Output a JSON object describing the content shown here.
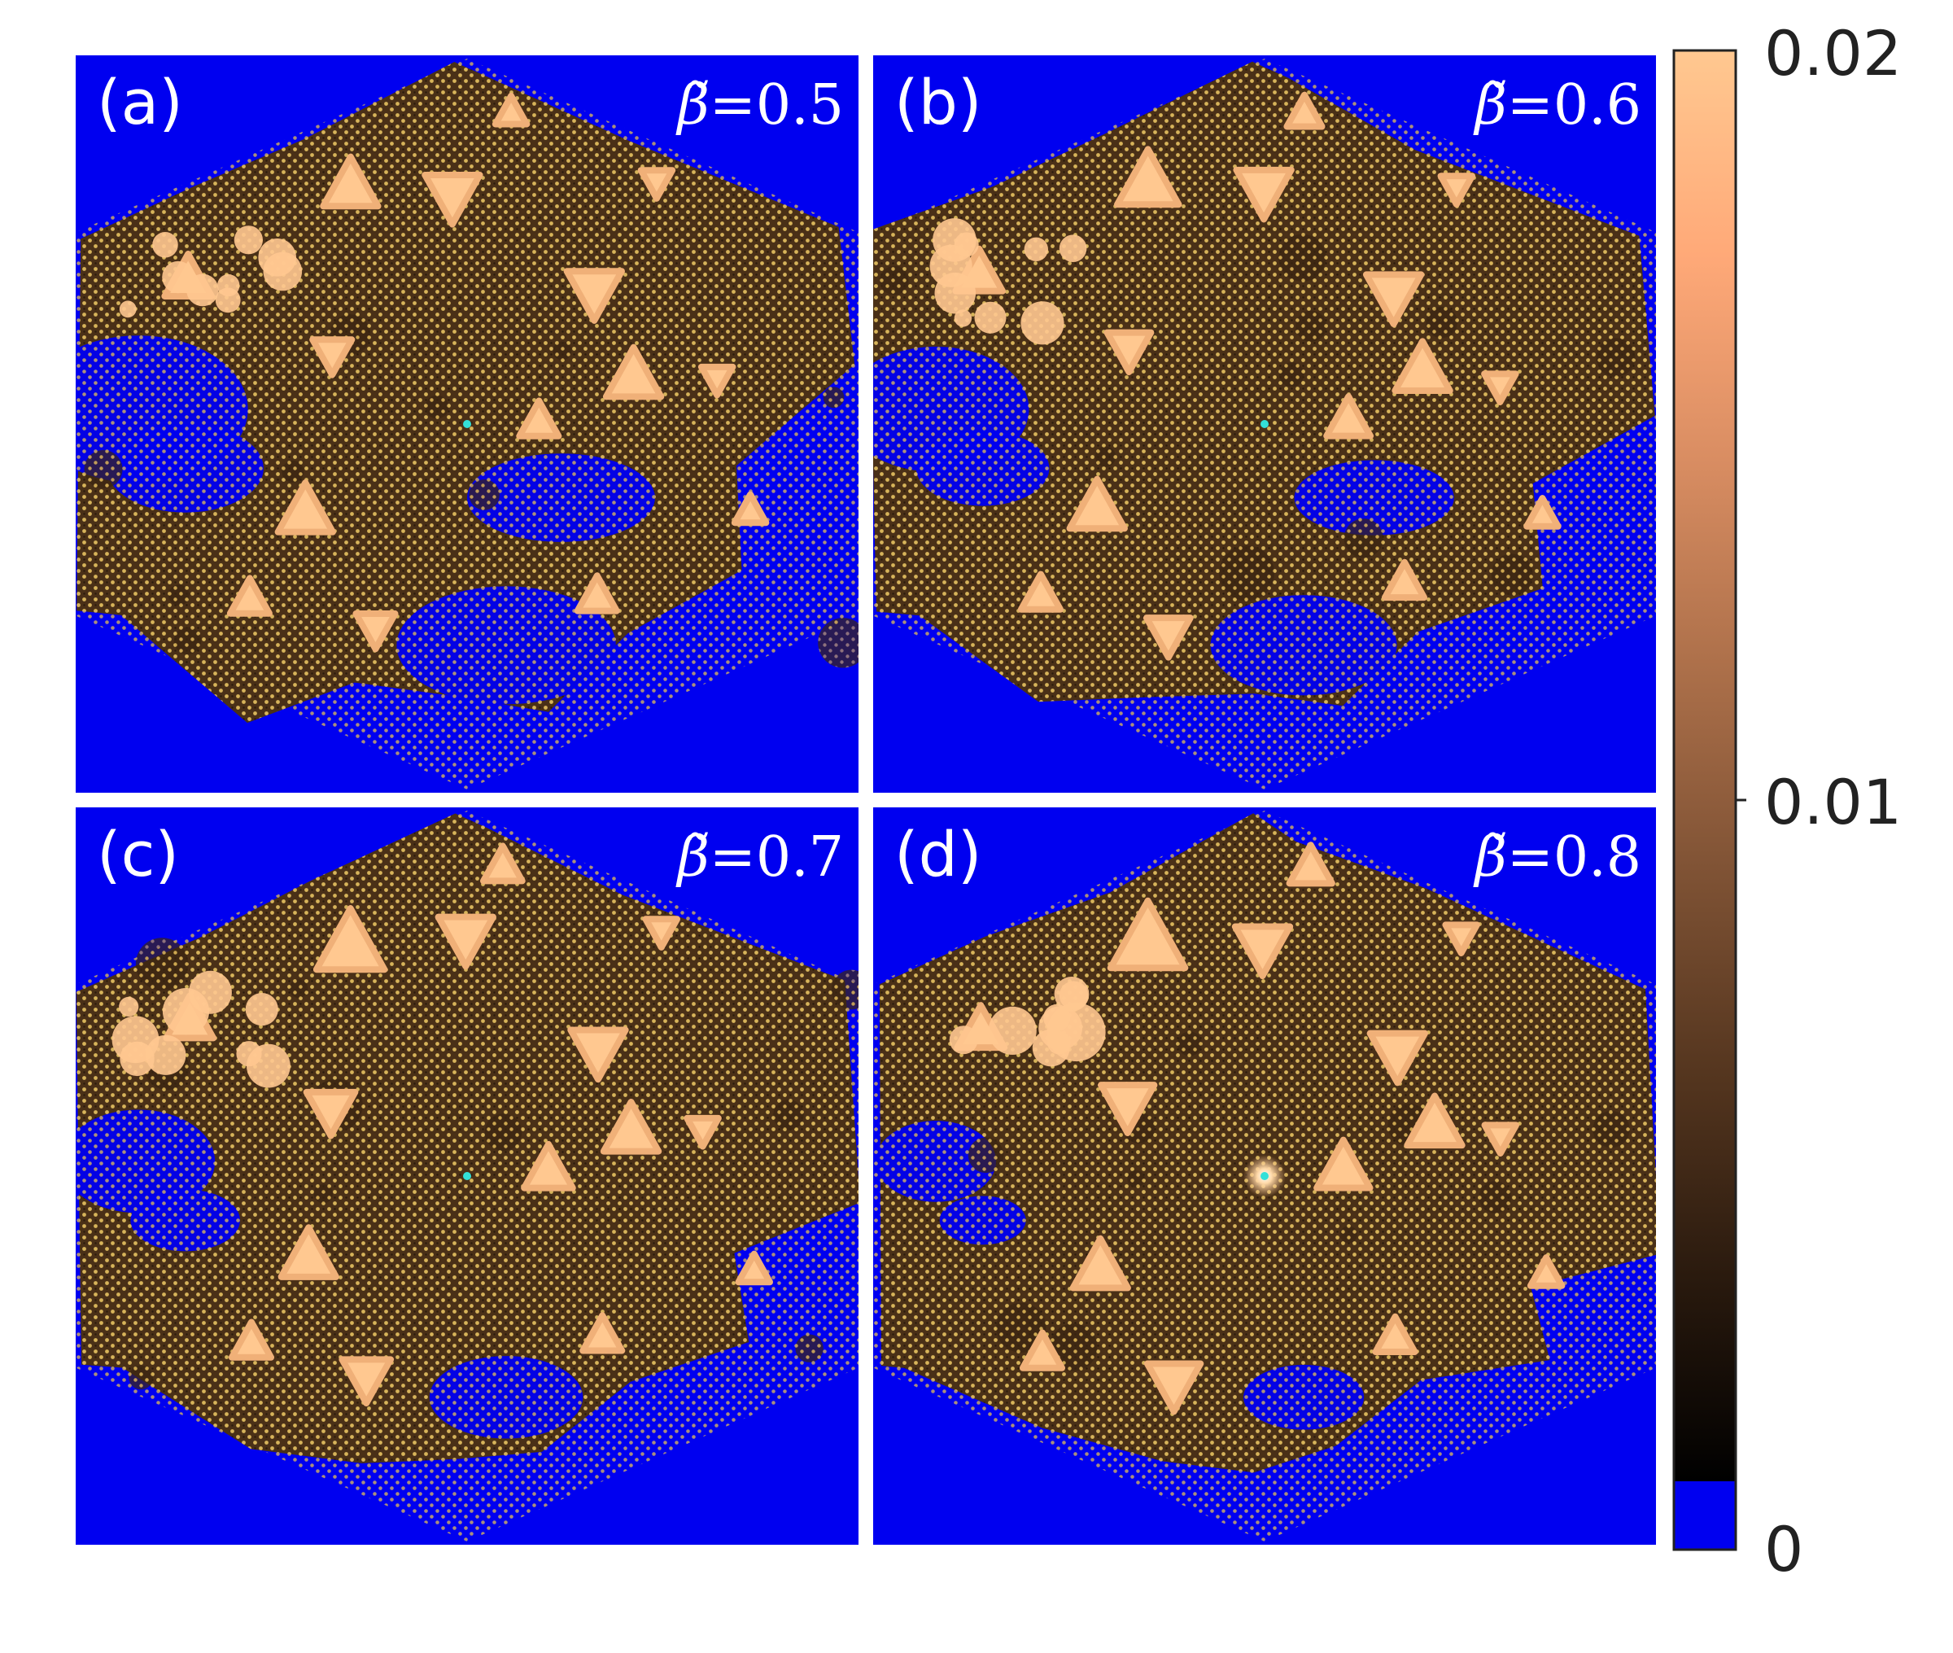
{
  "figure": {
    "panels": [
      {
        "label": "(a)",
        "beta_symbol": "β̃",
        "beta_equals": "=",
        "beta_value": "0.5",
        "cyan_spot": "small"
      },
      {
        "label": "(b)",
        "beta_symbol": "β̃",
        "beta_equals": "=",
        "beta_value": "0.6",
        "cyan_spot": "small"
      },
      {
        "label": "(c)",
        "beta_symbol": "β̃",
        "beta_equals": "=",
        "beta_value": "0.7",
        "cyan_spot": "small"
      },
      {
        "label": "(d)",
        "beta_symbol": "β̃",
        "beta_equals": "=",
        "beta_value": "0.8",
        "cyan_spot": "glow"
      }
    ],
    "colors": {
      "background_zero": "#0000f0",
      "lattice_site": "#d7b45a",
      "cyan_spot": "#33e0d8",
      "panel_label": "#ffffff"
    }
  },
  "chart_data": {
    "type": "heatmap",
    "layout": "2x2 grid of hexagonal lattice maps",
    "panels": [
      "(a)",
      "(b)",
      "(c)",
      "(d)"
    ],
    "parameter_values": [
      0.5,
      0.6,
      0.7,
      0.8
    ],
    "colorbar": {
      "min": 0,
      "max": 0.02,
      "ticks": [
        0,
        0.01,
        0.02
      ],
      "tick_labels": [
        "0",
        "0.01",
        "0.02"
      ],
      "underflow_color": "#0000f0",
      "colormap": [
        "#000000",
        "#2a1a0e",
        "#55361f",
        "#805335",
        "#ad704a",
        "#d98d62",
        "#ffa978",
        "#ffc890"
      ]
    }
  }
}
